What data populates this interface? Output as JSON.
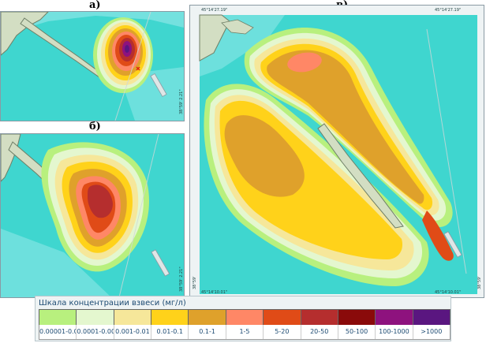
{
  "panels": {
    "a": {
      "label": "а)",
      "coord_right": "38°59' 2.21\""
    },
    "b": {
      "label": "б)",
      "coord_right": "38°59' 2.21\""
    },
    "c": {
      "label": "в)",
      "coord_top_left": "45°14'27.19\"",
      "coord_top_right": "45°14'27.19\"",
      "coord_bottom_left": "45°14'10.01\"",
      "coord_bottom_right": "45°14'10.01\"",
      "coord_left": "38°59'",
      "coord_right": "38°59'"
    }
  },
  "legend": {
    "title": "Шкала концентрации взвеси (мг/л)",
    "items": [
      {
        "label": "0.00001-0.0001",
        "color": "#b8f07e"
      },
      {
        "label": "0.0001-0.001",
        "color": "#e4f7cf"
      },
      {
        "label": "0.001-0.01",
        "color": "#f6e79a"
      },
      {
        "label": "0.01-0.1",
        "color": "#ffd21a"
      },
      {
        "label": "0.1-1",
        "color": "#dfa12b"
      },
      {
        "label": "1-5",
        "color": "#ff8766"
      },
      {
        "label": "5-20",
        "color": "#e04b17"
      },
      {
        "label": "20-50",
        "color": "#b52e2e"
      },
      {
        "label": "50-100",
        "color": "#8a0a0a"
      },
      {
        "label": "100-1000",
        "color": "#8e127e"
      },
      {
        "label": ">1000",
        "color": "#5a1680"
      }
    ]
  },
  "colors": {
    "sea": "#3fd6cf",
    "sea_light": "#8ce6e6",
    "land": "#d3dec3",
    "land_outline": "#6e7e66"
  }
}
